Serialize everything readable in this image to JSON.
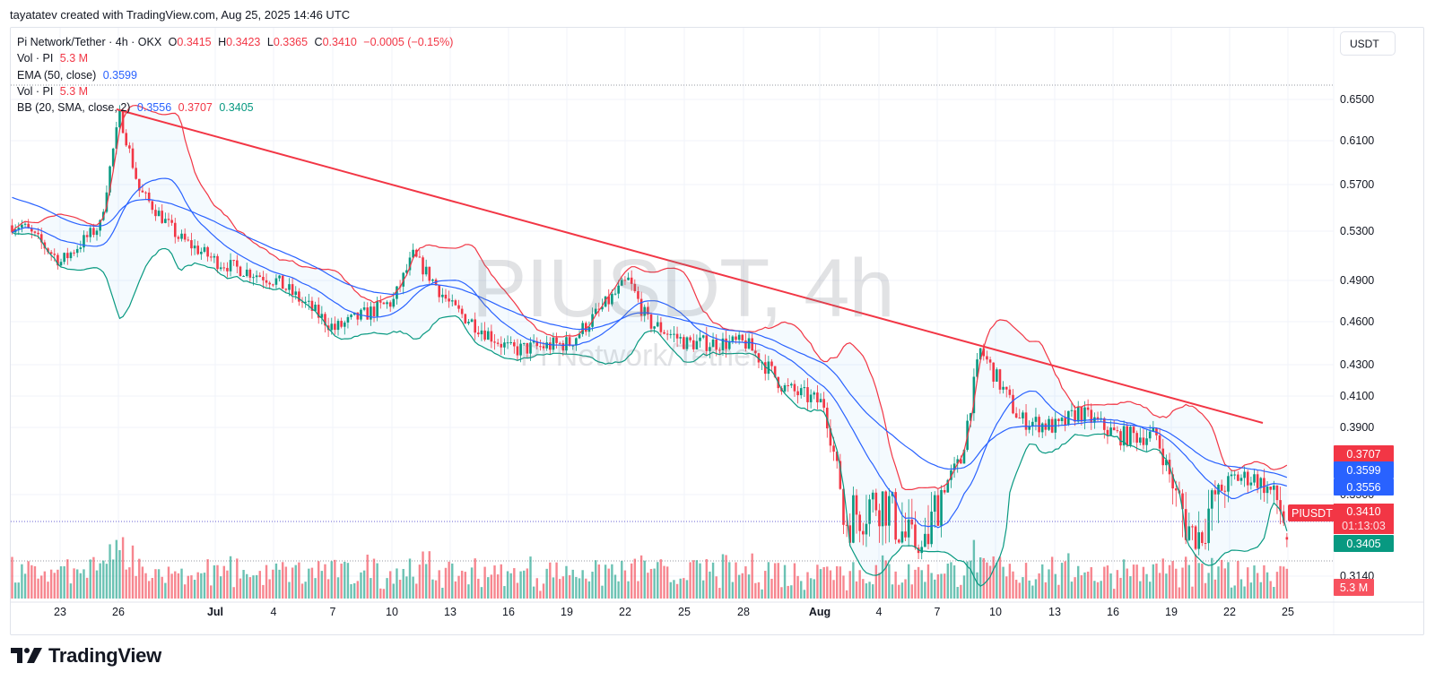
{
  "credit": "tayatatev created with TradingView.com, Aug 25, 2025 14:46 UTC",
  "legend": {
    "symbol_line": "Pi Network/Tether · 4h · OKX",
    "o_label": "O",
    "o_value": "0.3415",
    "h_label": "H",
    "h_value": "0.3423",
    "l_label": "L",
    "l_value": "0.3365",
    "c_label": "C",
    "c_value": "0.3410",
    "change": "−0.0005 (−0.15%)",
    "vol1_label": "Vol · PI",
    "vol1_value": "5.3 M",
    "ema_label": "EMA (50, close)",
    "ema_value": "0.3599",
    "vol2_label": "Vol · PI",
    "vol2_value": "5.3 M",
    "bb_label": "BB (20, SMA, close, 2)",
    "bb_basis": "0.3556",
    "bb_upper": "0.3707",
    "bb_lower": "0.3405"
  },
  "currency_button": "USDT",
  "watermark": {
    "main": "PIUSDT, 4h",
    "sub": "Pi Network/Tether"
  },
  "price_tags": {
    "bb_upper": "0.3707",
    "ema": "0.3599",
    "bb_basis": "0.3556",
    "last_price": "0.3410",
    "countdown": "01:13:03",
    "bb_lower": "0.3405",
    "volume": "5.3 M",
    "symbol": "PIUSDT"
  },
  "logo": {
    "text": "TradingView"
  },
  "colors": {
    "up": "#089981",
    "down": "#f23645",
    "ema": "#2962ff",
    "bb_basis": "#2962ff",
    "bb_upper": "#f23645",
    "bb_lower": "#089981",
    "trendline": "#f23645"
  },
  "chart_data": {
    "type": "candlestick",
    "title": "Pi Network/Tether · 4h · OKX",
    "ylabel": "USDT",
    "ylim": [
      0.3,
      0.67
    ],
    "y_ticks": [
      "0.6500",
      "0.6100",
      "0.5700",
      "0.5300",
      "0.4900",
      "0.4600",
      "0.4300",
      "0.4100",
      "0.3900",
      "0.3500",
      "0.3140"
    ],
    "x_ticks": [
      "23",
      "26",
      "Jul",
      "4",
      "7",
      "10",
      "13",
      "16",
      "19",
      "22",
      "25",
      "28",
      "Aug",
      "4",
      "7",
      "10",
      "13",
      "16",
      "19",
      "22",
      "25"
    ],
    "grid": true,
    "legend_position": "top-left",
    "ohlc_last": {
      "open": 0.3415,
      "high": 0.3423,
      "low": 0.3365,
      "close": 0.341,
      "change": -0.0005,
      "change_pct": -0.15
    },
    "approx_close_path": [
      {
        "date": "Jun 21",
        "close": 0.535
      },
      {
        "date": "Jun 23",
        "close": 0.505
      },
      {
        "date": "Jun 25",
        "close": 0.535
      },
      {
        "date": "Jun 26",
        "close": 0.635
      },
      {
        "date": "Jun 27",
        "close": 0.565
      },
      {
        "date": "Jun 29",
        "close": 0.525
      },
      {
        "date": "Jul 1",
        "close": 0.505
      },
      {
        "date": "Jul 4",
        "close": 0.49
      },
      {
        "date": "Jul 7",
        "close": 0.455
      },
      {
        "date": "Jul 10",
        "close": 0.475
      },
      {
        "date": "Jul 11",
        "close": 0.51
      },
      {
        "date": "Jul 13",
        "close": 0.47
      },
      {
        "date": "Jul 16",
        "close": 0.44
      },
      {
        "date": "Jul 19",
        "close": 0.445
      },
      {
        "date": "Jul 22",
        "close": 0.49
      },
      {
        "date": "Jul 23",
        "close": 0.46
      },
      {
        "date": "Jul 25",
        "close": 0.445
      },
      {
        "date": "Jul 28",
        "close": 0.445
      },
      {
        "date": "Jul 30",
        "close": 0.415
      },
      {
        "date": "Aug 1",
        "close": 0.405
      },
      {
        "date": "Aug 2",
        "close": 0.345
      },
      {
        "date": "Aug 4",
        "close": 0.35
      },
      {
        "date": "Aug 6",
        "close": 0.335
      },
      {
        "date": "Aug 8",
        "close": 0.37
      },
      {
        "date": "Aug 9",
        "close": 0.44
      },
      {
        "date": "Aug 11",
        "close": 0.395
      },
      {
        "date": "Aug 13",
        "close": 0.39
      },
      {
        "date": "Aug 14",
        "close": 0.4
      },
      {
        "date": "Aug 16",
        "close": 0.385
      },
      {
        "date": "Aug 18",
        "close": 0.385
      },
      {
        "date": "Aug 19",
        "close": 0.35
      },
      {
        "date": "Aug 20",
        "close": 0.34
      },
      {
        "date": "Aug 22",
        "close": 0.36
      },
      {
        "date": "Aug 23",
        "close": 0.36
      },
      {
        "date": "Aug 25",
        "close": 0.341
      }
    ],
    "indicators": {
      "ema50": {
        "label": "EMA (50, close)",
        "last": 0.3599
      },
      "bollinger": {
        "label": "BB (20, SMA, close, 2)",
        "basis": 0.3556,
        "upper": 0.3707,
        "lower": 0.3405
      },
      "volume": {
        "label": "Vol · PI",
        "last": "5.3 M"
      }
    },
    "annotations": [
      {
        "type": "trendline",
        "color": "#f23645",
        "from": {
          "date": "Jun 26",
          "price": 0.638
        },
        "to": {
          "date": "Aug 24",
          "price": 0.394
        },
        "description": "Descending resistance trendline"
      }
    ]
  }
}
